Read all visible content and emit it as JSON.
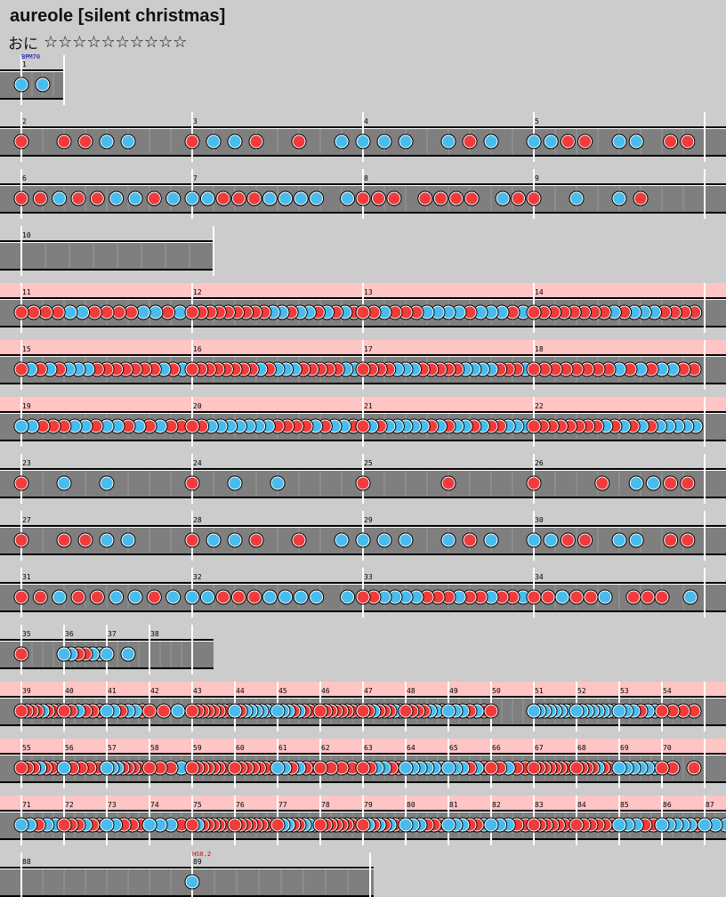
{
  "song": {
    "title": "aureole [silent christmas]",
    "difficulty_label": "おに",
    "stars": "☆☆☆☆☆☆☆☆☆☆"
  },
  "colors": {
    "background": "#cccccc",
    "lane": "#7f7f7f",
    "gogo_band": "#ffc4c4",
    "don": "#f23b3b",
    "ka": "#48bcee",
    "barline": "#ffffff",
    "event_bpm": "#0000aa",
    "event_hs": "#cc0000"
  },
  "events": [
    {
      "measure": 1,
      "label": "BPM70"
    },
    {
      "measure": 89,
      "label": "HS0.2"
    }
  ],
  "legend": {
    "d": "don (red)",
    "k": "ka (blue)"
  },
  "measures": [
    {
      "n": 1,
      "notes": "kk"
    },
    {
      "n": 2,
      "notes": "d.ddkk"
    },
    {
      "n": 3,
      "notes": "dkkd.d.k"
    },
    {
      "n": 4,
      "notes": "kkk.kdk"
    },
    {
      "n": 5,
      "notes": "kkdd.kk.dd"
    },
    {
      "n": 6,
      "notes": "ddkddkkdk"
    },
    {
      "n": 7,
      "notes": "kkdddkkkk.k"
    },
    {
      "n": 8,
      "notes": "ddd.dddd.kd"
    },
    {
      "n": 9,
      "notes": "d.k.kd"
    },
    {
      "n": 10,
      "notes": ""
    },
    {
      "n": 11,
      "notes": "ddddkkddddkkdk"
    },
    {
      "n": 12,
      "notes": "dddddddddkkdkkdkdkd"
    },
    {
      "n": 13,
      "notes": "ddkdddkkkkdkkkdk"
    },
    {
      "n": 14,
      "notes": "ddddddddkdkkkdddd"
    },
    {
      "n": 15,
      "notes": "dkdkdkkkdddddddkdk"
    },
    {
      "n": 16,
      "notes": "ddddddddkdkkkdddddkk"
    },
    {
      "n": 17,
      "notes": "ddddkkkdddddkkkkdddk"
    },
    {
      "n": 18,
      "notes": "ddddddddkdkdkkdd"
    },
    {
      "n": 19,
      "notes": "kkdddkkdkkdkdkdd"
    },
    {
      "n": 20,
      "notes": "ddkkkkkkkddddkdkkd"
    },
    {
      "n": 21,
      "notes": "dkdkkkkkdkdkkdkddkkk"
    },
    {
      "n": 22,
      "notes": "ddddddddkdkdkdkkkkk"
    },
    {
      "n": 23,
      "notes": "d.k.k"
    },
    {
      "n": 24,
      "notes": "d.k.k"
    },
    {
      "n": 25,
      "notes": "d...d"
    },
    {
      "n": 26,
      "notes": "d...d.kkdd"
    },
    {
      "n": 27,
      "notes": "d.ddkk"
    },
    {
      "n": 28,
      "notes": "dkkd.d.k"
    },
    {
      "n": 29,
      "notes": "kkk.kdk"
    },
    {
      "n": 30,
      "notes": "kkdd.kk.dd"
    },
    {
      "n": 31,
      "notes": "ddkddkkdk"
    },
    {
      "n": 32,
      "notes": "kkdddkkkk.k"
    },
    {
      "n": 33,
      "notes": "ddkkkkdddkddkddk"
    },
    {
      "n": 34,
      "notes": "ddkddk.ddd.k"
    },
    {
      "n": 35,
      "notes": "d"
    },
    {
      "n": 36,
      "notes": "kkddkk"
    },
    {
      "n": 37,
      "notes": "kk"
    },
    {
      "n": 38,
      "notes": ""
    },
    {
      "n": 39,
      "notes": "ddddkddd"
    },
    {
      "n": 40,
      "notes": "ddkddd"
    },
    {
      "n": 41,
      "notes": "kkdkkd"
    },
    {
      "n": 42,
      "notes": "ddk"
    },
    {
      "n": 43,
      "notes": "dddddddd"
    },
    {
      "n": 44,
      "notes": "kdkkkkkk"
    },
    {
      "n": 45,
      "notes": "kkkdkddd"
    },
    {
      "n": 46,
      "notes": "dddddddd"
    },
    {
      "n": 47,
      "notes": "ddkdddkd"
    },
    {
      "n": 48,
      "notes": "ddddkkd"
    },
    {
      "n": 49,
      "notes": "kkkdkd"
    },
    {
      "n": 50,
      "notes": "d"
    },
    {
      "n": 51,
      "notes": "kkkkkkkk"
    },
    {
      "n": 52,
      "notes": "kkkkkkkd"
    },
    {
      "n": 53,
      "notes": "kkkdkk"
    },
    {
      "n": 54,
      "notes": "dddd"
    },
    {
      "n": 55,
      "notes": "dddkddd"
    },
    {
      "n": 56,
      "notes": "kdddd"
    },
    {
      "n": 57,
      "notes": "kkkddddd"
    },
    {
      "n": 58,
      "notes": "dddk"
    },
    {
      "n": 59,
      "notes": "dddddddd"
    },
    {
      "n": 60,
      "notes": "ddddddd"
    },
    {
      "n": 61,
      "notes": "kkdkdd"
    },
    {
      "n": 62,
      "notes": "dddd"
    },
    {
      "n": 63,
      "notes": "ddkkdd"
    },
    {
      "n": 64,
      "notes": "kkkkkk"
    },
    {
      "n": 65,
      "notes": "kkkdkd"
    },
    {
      "n": 66,
      "notes": "ddkdd"
    },
    {
      "n": 67,
      "notes": "dddddddd"
    },
    {
      "n": 68,
      "notes": "ddddkddd"
    },
    {
      "n": 69,
      "notes": "kkkkkk"
    },
    {
      "n": 70,
      "notes": "dd.d"
    },
    {
      "n": 71,
      "notes": "kkdkk"
    },
    {
      "n": 72,
      "notes": "dddkdd"
    },
    {
      "n": 73,
      "notes": "kkddd"
    },
    {
      "n": 74,
      "notes": "kkkd"
    },
    {
      "n": 75,
      "notes": "dkdddddd"
    },
    {
      "n": 76,
      "notes": "dddddddd"
    },
    {
      "n": 77,
      "notes": "dkkddkkk"
    },
    {
      "n": 78,
      "notes": "dddddddd"
    },
    {
      "n": 79,
      "notes": "dkdkdkdk"
    },
    {
      "n": 80,
      "notes": "kkkddd"
    },
    {
      "n": 81,
      "notes": "kkkddk"
    },
    {
      "n": 82,
      "notes": "kkkdd"
    },
    {
      "n": 83,
      "notes": "ddddddd"
    },
    {
      "n": 84,
      "notes": "dddddd"
    },
    {
      "n": 85,
      "notes": "kkkdd"
    },
    {
      "n": 86,
      "notes": "kkkkkd"
    },
    {
      "n": 87,
      "notes": "kkkk"
    },
    {
      "n": 88,
      "notes": ""
    },
    {
      "n": 89,
      "notes": "k"
    }
  ]
}
